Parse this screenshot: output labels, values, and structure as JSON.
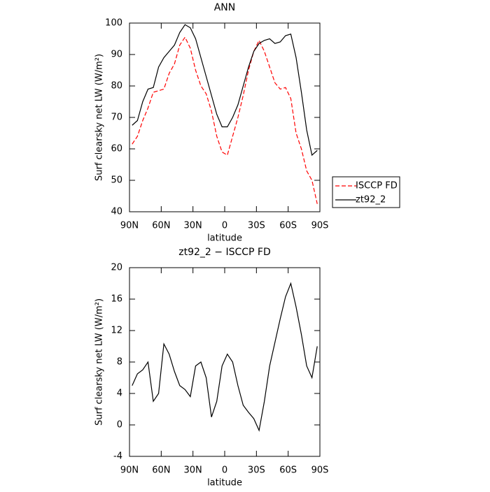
{
  "chart_data": [
    {
      "type": "line",
      "title": "ANN",
      "xlabel": "latitude",
      "ylabel": "Surf clearsky net LW (W/m²)",
      "x": [
        87.5,
        82.5,
        77.5,
        72.5,
        67.5,
        62.5,
        57.5,
        52.5,
        47.5,
        42.5,
        37.5,
        32.5,
        27.5,
        22.5,
        17.5,
        12.5,
        7.5,
        2.5,
        -2.5,
        -7.5,
        -12.5,
        -17.5,
        -22.5,
        -27.5,
        -32.5,
        -37.5,
        -42.5,
        -47.5,
        -52.5,
        -57.5,
        -62.5,
        -67.5,
        -72.5,
        -77.5,
        -82.5,
        -87.5
      ],
      "series": [
        {
          "name": "ISCCP FD",
          "color": "#ff0000",
          "line_style": "dashed",
          "values": [
            61.5,
            64,
            69,
            73,
            78,
            78.5,
            79,
            84,
            87,
            93,
            95.5,
            92,
            85,
            80,
            77.5,
            72,
            64,
            59,
            58,
            64,
            70,
            77,
            85,
            91,
            94.5,
            91,
            86,
            81,
            79,
            79.5,
            76,
            65,
            60,
            53,
            50,
            42.5
          ]
        },
        {
          "name": "zt92_2",
          "color": "#000000",
          "line_style": "solid",
          "values": [
            67.5,
            69,
            75,
            79,
            79.5,
            86,
            89,
            91,
            93,
            97,
            99.5,
            98.5,
            95,
            89,
            83,
            77,
            71,
            67,
            67,
            70,
            74,
            80,
            86,
            91,
            93.5,
            94.5,
            95,
            93.5,
            94,
            96,
            96.5,
            89,
            78,
            66,
            58,
            59.5
          ]
        }
      ],
      "xlim": [
        90,
        -90
      ],
      "xticks": [
        {
          "value": 90,
          "label": "90N"
        },
        {
          "value": 60,
          "label": "60N"
        },
        {
          "value": 30,
          "label": "30N"
        },
        0,
        {
          "value": -30,
          "label": "30S"
        },
        {
          "value": -60,
          "label": "60S"
        },
        {
          "value": -90,
          "label": "90S"
        }
      ],
      "ylim": [
        40,
        100
      ],
      "yticks": [
        40,
        50,
        60,
        70,
        80,
        90,
        100
      ],
      "legend": "right"
    },
    {
      "type": "line",
      "title": "zt92_2 − ISCCP FD",
      "xlabel": "latitude",
      "ylabel": "Surf clearsky net LW (W/m²)",
      "x": [
        87.5,
        82.5,
        77.5,
        72.5,
        67.5,
        62.5,
        57.5,
        52.5,
        47.5,
        42.5,
        37.5,
        32.5,
        27.5,
        22.5,
        17.5,
        12.5,
        7.5,
        2.5,
        -2.5,
        -7.5,
        -12.5,
        -17.5,
        -22.5,
        -27.5,
        -32.5,
        -37.5,
        -42.5,
        -47.5,
        -52.5,
        -57.5,
        -62.5,
        -67.5,
        -72.5,
        -77.5,
        -82.5,
        -87.5
      ],
      "series": [
        {
          "color": "#000000",
          "line_style": "solid",
          "values": [
            5,
            6.5,
            7,
            8,
            3,
            4,
            10.3,
            9,
            6.8,
            5,
            4.5,
            3.6,
            7.5,
            8,
            6,
            1,
            3,
            7.5,
            9,
            8,
            5,
            2.5,
            1.6,
            0.8,
            -0.7,
            3,
            7.5,
            10.5,
            13.5,
            16.3,
            18,
            15,
            11.5,
            7.5,
            6,
            10
          ]
        }
      ],
      "xlim": [
        90,
        -90
      ],
      "xticks": [
        {
          "value": 90,
          "label": "90N"
        },
        {
          "value": 60,
          "label": "60N"
        },
        {
          "value": 30,
          "label": "30N"
        },
        0,
        {
          "value": -30,
          "label": "30S"
        },
        {
          "value": -60,
          "label": "60S"
        },
        {
          "value": -90,
          "label": "90S"
        }
      ],
      "ylim": [
        -4,
        20
      ],
      "yticks": [
        -4,
        0,
        4,
        8,
        12,
        16,
        20
      ]
    }
  ]
}
